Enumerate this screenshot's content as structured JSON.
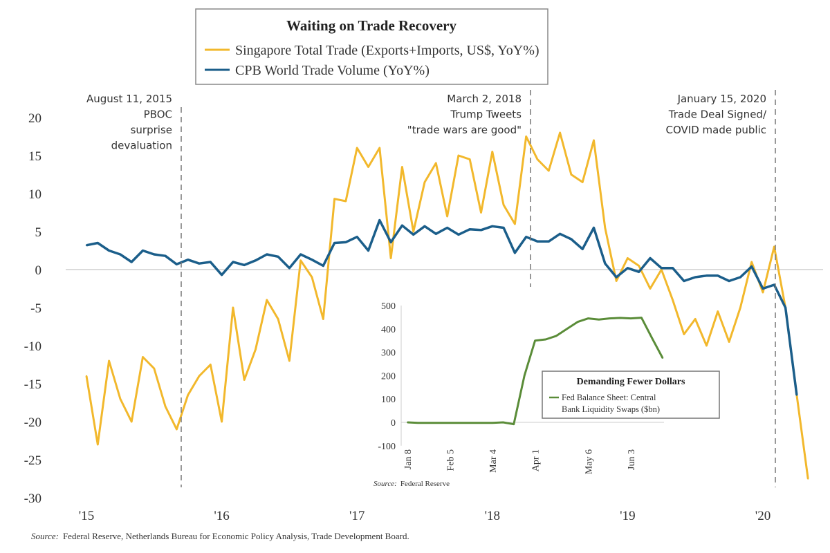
{
  "colors": {
    "singapore": "#f2b82c",
    "cpb": "#1b5e8a",
    "fed": "#5a8c38",
    "grid": "#cfcfcf",
    "event_line": "#777777"
  },
  "chart_data": [
    {
      "type": "line",
      "title": "Waiting on Trade Recovery",
      "xlabel": "",
      "ylabel": "",
      "ylim": [
        -30,
        20
      ],
      "yticks": [
        "20",
        "15",
        "10",
        "5",
        "0",
        "-5",
        "-10",
        "-15",
        "-20",
        "-25",
        "-30"
      ],
      "ytick_values": [
        20,
        15,
        10,
        5,
        0,
        -5,
        -10,
        -15,
        -20,
        -25,
        -30
      ],
      "xticks": [
        "'15",
        "'16",
        "'17",
        "'18",
        "'19",
        "'20"
      ],
      "xtick_values": [
        "2015-01",
        "2016-01",
        "2017-01",
        "2018-01",
        "2019-01",
        "2020-01"
      ],
      "grid": "zero line only",
      "legend": "top-center",
      "x": [
        "2015-01",
        "2015-02",
        "2015-03",
        "2015-04",
        "2015-05",
        "2015-06",
        "2015-07",
        "2015-08",
        "2015-09",
        "2015-10",
        "2015-11",
        "2015-12",
        "2016-01",
        "2016-02",
        "2016-03",
        "2016-04",
        "2016-05",
        "2016-06",
        "2016-07",
        "2016-08",
        "2016-09",
        "2016-10",
        "2016-11",
        "2016-12",
        "2017-01",
        "2017-02",
        "2017-03",
        "2017-04",
        "2017-05",
        "2017-06",
        "2017-07",
        "2017-08",
        "2017-09",
        "2017-10",
        "2017-11",
        "2017-12",
        "2018-01",
        "2018-02",
        "2018-03",
        "2018-04",
        "2018-05",
        "2018-06",
        "2018-07",
        "2018-08",
        "2018-09",
        "2018-10",
        "2018-11",
        "2018-12",
        "2019-01",
        "2019-02",
        "2019-03",
        "2019-04",
        "2019-05",
        "2019-06",
        "2019-07",
        "2019-08",
        "2019-09",
        "2019-10",
        "2019-11",
        "2019-12",
        "2020-01",
        "2020-02",
        "2020-03",
        "2020-04",
        "2020-05"
      ],
      "series": [
        {
          "name": "Singapore Total Trade (Exports+Imports, US$, YoY%)",
          "color_key": "singapore",
          "values": [
            -14,
            -23,
            -12,
            -17,
            -20,
            -11.5,
            -13,
            -18,
            -21,
            -16.5,
            -14,
            -12.5,
            -20,
            -5,
            -14.5,
            -10.5,
            -4,
            -6.5,
            -12,
            1.2,
            -1,
            -6.5,
            9.3,
            9,
            16,
            13.5,
            16,
            1.5,
            13.5,
            5,
            11.5,
            14,
            7,
            15,
            14.5,
            7.5,
            15.5,
            8.5,
            6,
            17.5,
            14.5,
            13,
            18,
            12.5,
            11.5,
            17,
            5.5,
            -1.5,
            1.5,
            0.5,
            -2.5,
            0,
            -4,
            -8.5,
            -6.5,
            -10,
            -5.5,
            -9.5,
            -5,
            1,
            -3,
            3,
            -5,
            -16.5,
            -27.5
          ]
        },
        {
          "name": "CPB World Trade Volume (YoY%)",
          "color_key": "cpb",
          "values": [
            3.2,
            3.5,
            2.5,
            2,
            1,
            2.5,
            2,
            1.8,
            0.7,
            1.3,
            0.8,
            1,
            -0.7,
            1,
            0.6,
            1.2,
            2,
            1.7,
            0.2,
            2,
            1.3,
            0.5,
            3.5,
            3.6,
            4.3,
            2.5,
            6.5,
            3.6,
            5.8,
            4.6,
            5.7,
            4.7,
            5.5,
            4.6,
            5.3,
            5.2,
            5.7,
            5.5,
            2.2,
            4.3,
            3.7,
            3.7,
            4.7,
            4,
            2.7,
            5.5,
            0.8,
            -1,
            0.2,
            -0.3,
            1.5,
            0.2,
            0.2,
            -1.5,
            -1,
            -0.8,
            -0.8,
            -1.5,
            -1,
            0.4,
            -2.5,
            -2,
            -5,
            -16.5,
            null
          ]
        }
      ],
      "annotations": [
        {
          "date": "2015-08",
          "lines": [
            "August 11, 2015",
            "PBOC",
            "surprise",
            "devaluation"
          ]
        },
        {
          "date": "2018-03",
          "lines": [
            "March 2, 2018",
            "Trump Tweets",
            "\"trade wars are good\""
          ]
        },
        {
          "date": "2020-01",
          "lines": [
            "January 15, 2020",
            "Trade Deal Signed/",
            "COVID made public"
          ]
        }
      ],
      "source_label": "Source:",
      "source_text": "Federal Reserve, Netherlands Bureau for Economic Policy Analysis, Trade Development Board."
    },
    {
      "type": "line",
      "title": "Demanding Fewer Dollars",
      "ylim": [
        -100,
        500
      ],
      "yticks": [
        "500",
        "400",
        "300",
        "200",
        "100",
        "0",
        "-100"
      ],
      "ytick_values": [
        500,
        400,
        300,
        200,
        100,
        0,
        -100
      ],
      "xticks": [
        "Jan 8",
        "Feb 5",
        "Mar 4",
        "Apr 1",
        "May 6",
        "Jun 3"
      ],
      "xtick_values": [
        "2020-01-08",
        "2020-02-05",
        "2020-03-04",
        "2020-04-01",
        "2020-05-06",
        "2020-06-03"
      ],
      "legend": "bottom-right",
      "series": [
        {
          "name": "Fed Balance Sheet: Central Bank Liquidity Swaps ($bn)",
          "name_lines": [
            "Fed Balance Sheet: Central",
            "Bank Liquidity Swaps ($bn)"
          ],
          "color_key": "fed",
          "x": [
            "2020-01-08",
            "2020-01-15",
            "2020-01-22",
            "2020-01-29",
            "2020-02-05",
            "2020-02-12",
            "2020-02-19",
            "2020-02-26",
            "2020-03-04",
            "2020-03-11",
            "2020-03-18",
            "2020-03-25",
            "2020-04-01",
            "2020-04-08",
            "2020-04-15",
            "2020-04-22",
            "2020-04-29",
            "2020-05-06",
            "2020-05-13",
            "2020-05-20",
            "2020-05-27",
            "2020-06-03",
            "2020-06-10",
            "2020-06-17",
            "2020-06-24"
          ],
          "values": [
            0,
            -2,
            -2,
            -2,
            -2,
            -2,
            -2,
            -2,
            -2,
            0,
            -8,
            200,
            350,
            355,
            370,
            400,
            430,
            445,
            440,
            445,
            447,
            445,
            448,
            360,
            275
          ]
        }
      ],
      "source_label": "Source:",
      "source_text": "Federal Reserve"
    }
  ]
}
